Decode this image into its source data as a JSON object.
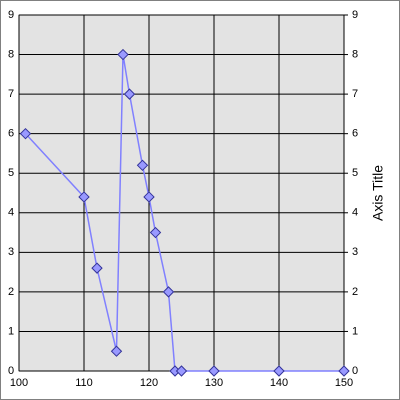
{
  "chart_data": {
    "type": "scatter",
    "lines": true,
    "x": [
      101,
      110,
      112,
      115,
      116,
      117,
      119,
      120,
      121,
      123,
      124,
      125,
      130,
      140,
      150
    ],
    "values": [
      6,
      4.4,
      2.6,
      0.5,
      8,
      7,
      5.2,
      4.4,
      3.5,
      2,
      0,
      0,
      0,
      0,
      0
    ],
    "color": "#8080ff",
    "marker_color": "#9999ff",
    "marker_edge": "#333399",
    "xlim": [
      100,
      150
    ],
    "xticks": [
      100,
      110,
      120,
      130,
      140,
      150
    ],
    "ylim": [
      0,
      9
    ],
    "yticks": [
      0,
      1,
      2,
      3,
      4,
      5,
      6,
      7,
      8,
      9
    ],
    "y2lim": [
      0,
      9
    ],
    "y2ticks": [
      0,
      1,
      2,
      3,
      4,
      5,
      6,
      7,
      8,
      9
    ],
    "y2label": "Axis Title",
    "grid": true
  }
}
